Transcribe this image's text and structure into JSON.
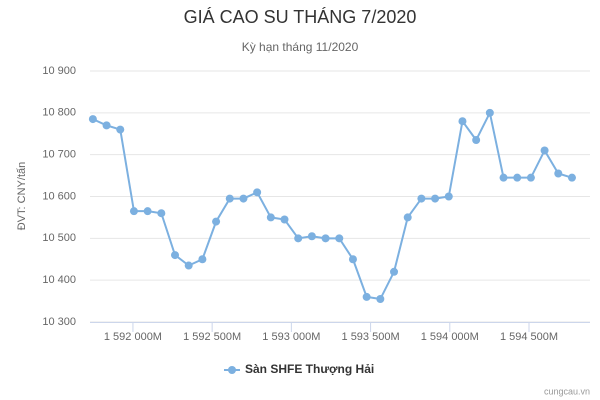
{
  "chart_data": {
    "type": "line",
    "title": "GIÁ CAO SU THÁNG 7/2020",
    "subtitle": "Kỳ hạn tháng 11/2020",
    "y_label": "ĐVT: CNY/tấn",
    "credits": "cungcau.vn",
    "x": [
      1591747200000,
      1591833600000,
      1591920000000,
      1592006400000,
      1592092800000,
      1592179200000,
      1592265600000,
      1592352000000,
      1592438400000,
      1592524800000,
      1592611200000,
      1592697600000,
      1592784000000,
      1592870400000,
      1592956800000,
      1593043200000,
      1593129600000,
      1593216000000,
      1593302400000,
      1593388800000,
      1593475200000,
      1593561600000,
      1593648000000,
      1593734400000,
      1593820800000,
      1593907200000,
      1593993600000,
      1594080000000,
      1594166400000,
      1594252800000,
      1594339200000,
      1594425600000,
      1594512000000,
      1594598400000,
      1594684800000,
      1594771200000
    ],
    "series": [
      {
        "name": "Sàn SHFE Thượng Hải",
        "color": "#7cb0e0",
        "values": [
          10785,
          10770,
          10760,
          10565,
          10565,
          10560,
          10460,
          10435,
          10450,
          10540,
          10595,
          10595,
          10610,
          10550,
          10545,
          10500,
          10505,
          10500,
          10500,
          10450,
          10360,
          10355,
          10420,
          10550,
          10595,
          10595,
          10600,
          10780,
          10735,
          10800,
          10645,
          10645,
          10645,
          10710,
          10655,
          10645
        ]
      }
    ],
    "xlim": [
      1591729000000,
      1594885000000
    ],
    "xticks": [
      {
        "value": 1592000000000,
        "label": "1 592 000M"
      },
      {
        "value": 1592500000000,
        "label": "1 592 500M"
      },
      {
        "value": 1593000000000,
        "label": "1 593 000M"
      },
      {
        "value": 1593500000000,
        "label": "1 593 500M"
      },
      {
        "value": 1594000000000,
        "label": "1 594 000M"
      },
      {
        "value": 1594500000000,
        "label": "1 594 500M"
      }
    ],
    "ylim": [
      10300,
      10900
    ],
    "yticks": [
      {
        "value": 10300,
        "label": "10 300"
      },
      {
        "value": 10400,
        "label": "10 400"
      },
      {
        "value": 10500,
        "label": "10 500"
      },
      {
        "value": 10600,
        "label": "10 600"
      },
      {
        "value": 10700,
        "label": "10 700"
      },
      {
        "value": 10800,
        "label": "10 800"
      },
      {
        "value": 10900,
        "label": "10 900"
      }
    ],
    "grid": true,
    "legend": "bottom"
  }
}
